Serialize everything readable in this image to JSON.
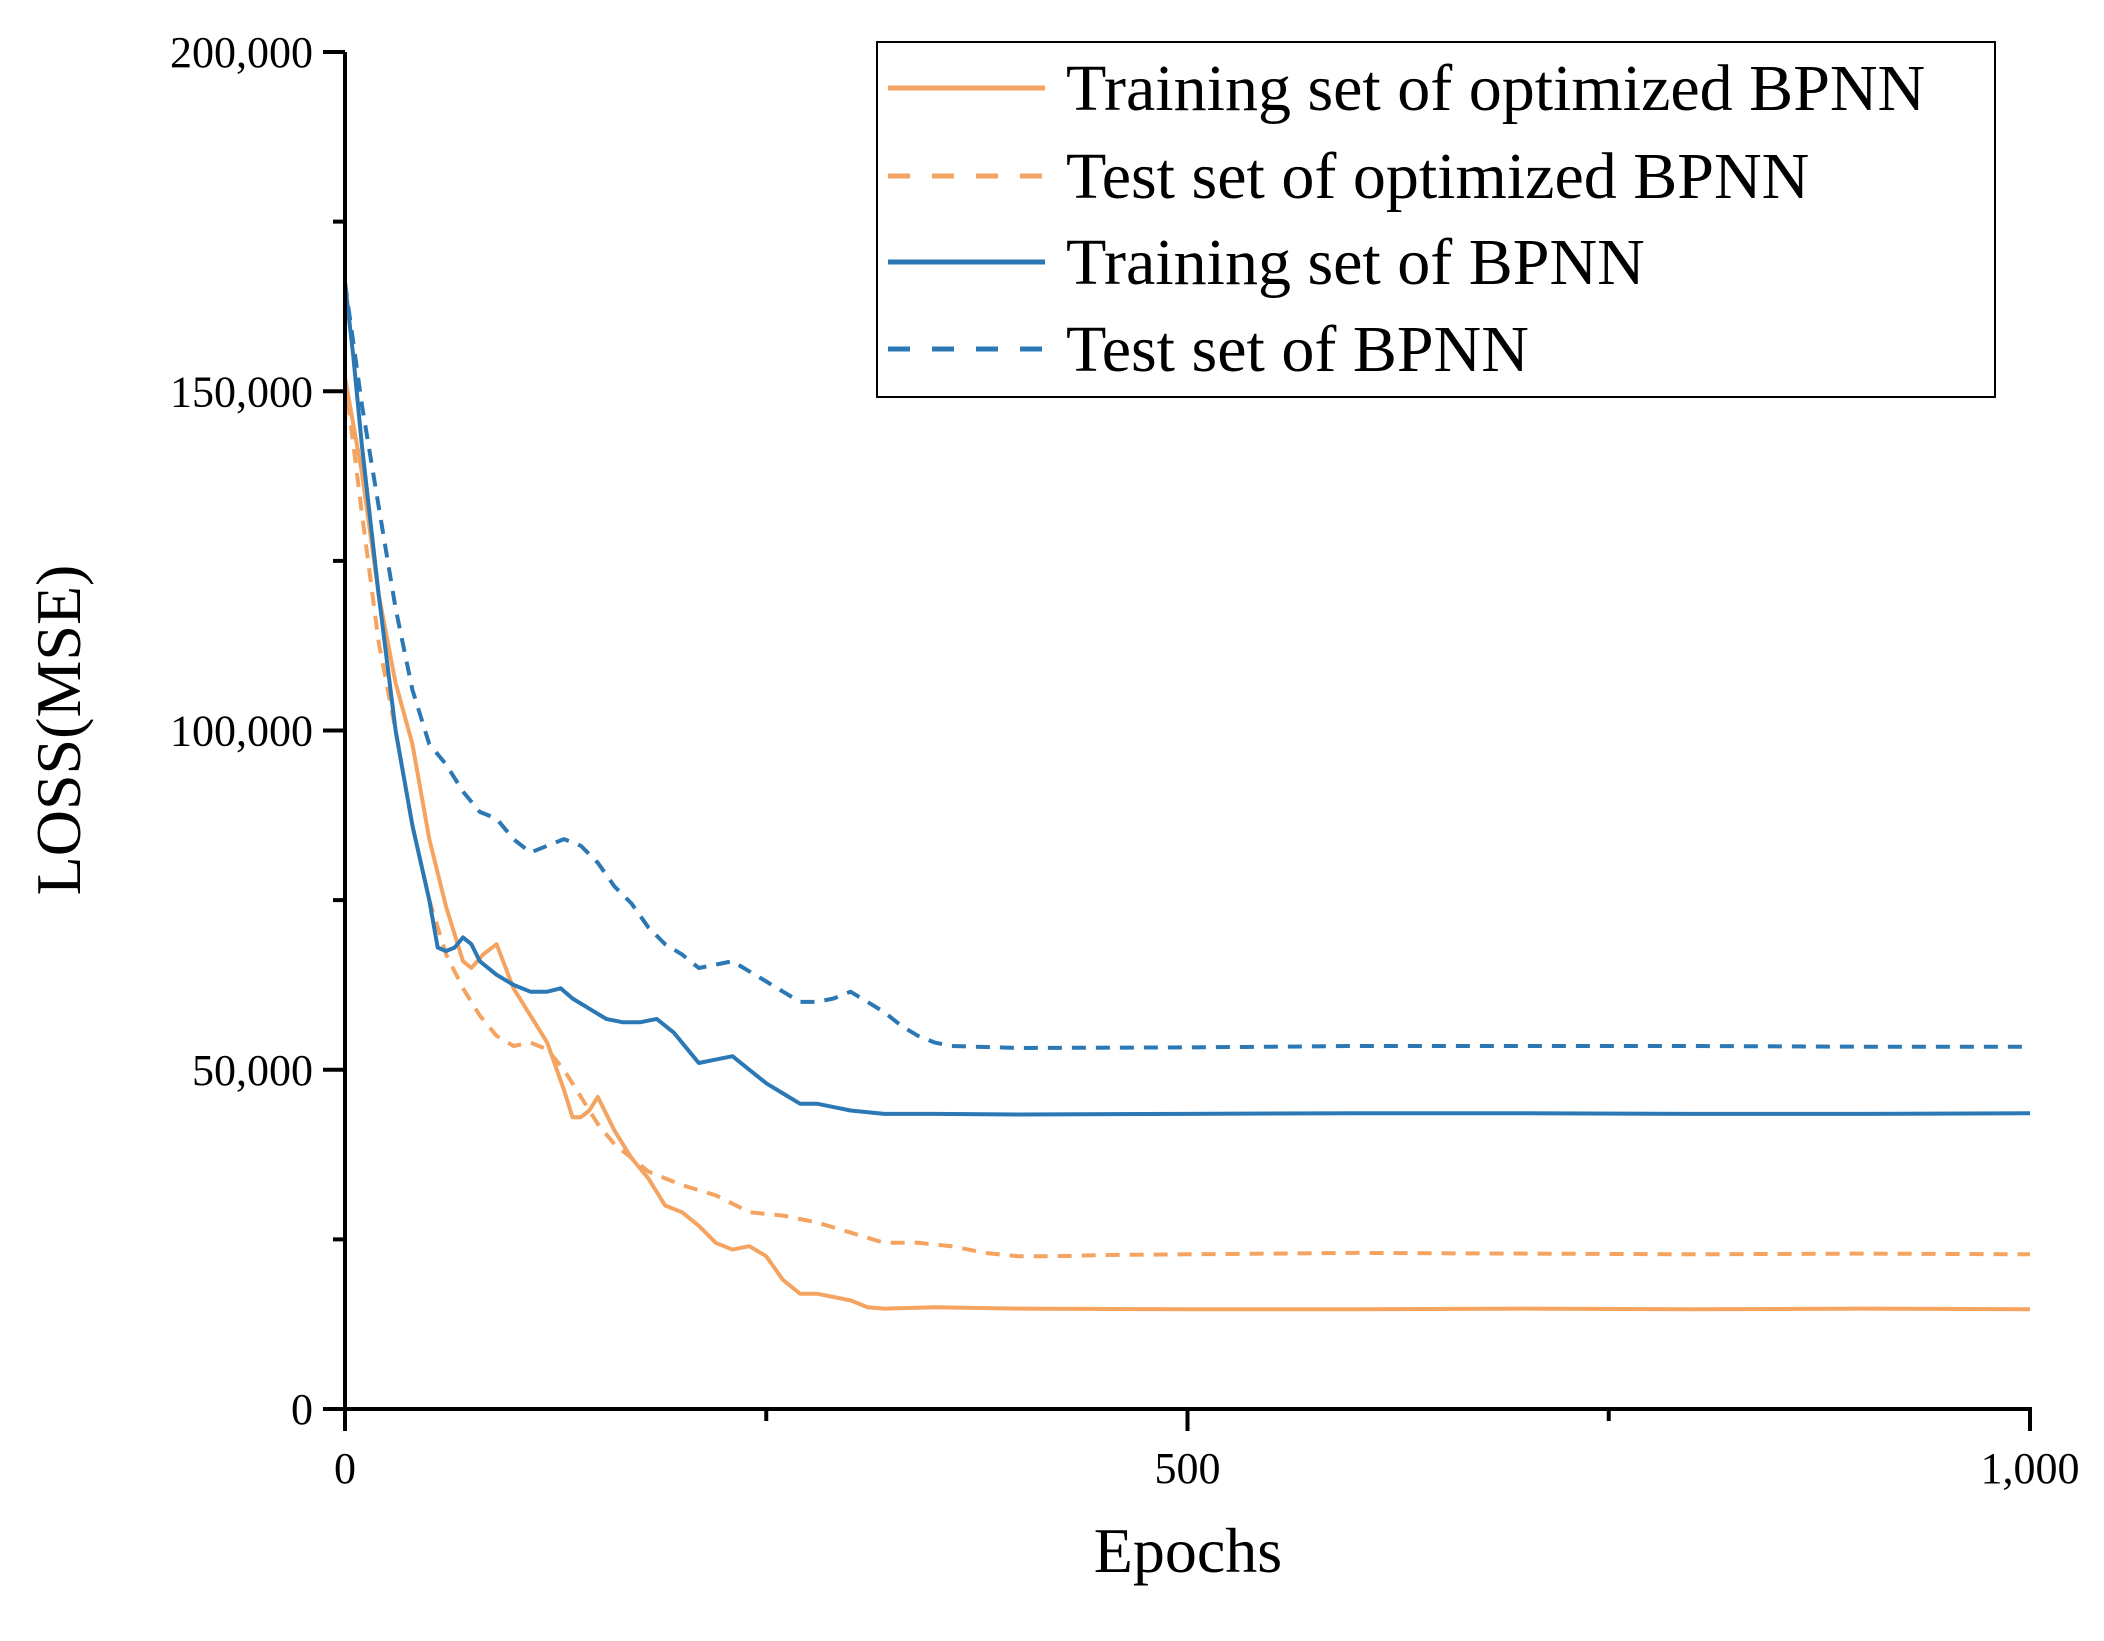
{
  "chart_data": {
    "type": "line",
    "title": "",
    "xlabel": "Epochs",
    "ylabel": "LOSS(MSE)",
    "xlim": [
      0,
      1000
    ],
    "ylim": [
      0,
      200000
    ],
    "x_ticks": [
      0,
      500,
      1000
    ],
    "x_tick_labels": [
      "0",
      "500",
      "1,000"
    ],
    "x_minor_ticks": [
      250,
      750
    ],
    "y_ticks": [
      0,
      50000,
      100000,
      150000,
      200000
    ],
    "y_tick_labels": [
      "0",
      "50,000",
      "100,000",
      "150,000",
      "200,000"
    ],
    "y_minor_ticks": [
      25000,
      75000,
      125000,
      175000
    ],
    "grid": false,
    "legend_position": "top-right",
    "series": [
      {
        "name": "Training set of optimized BPNN",
        "color": "#f4a460",
        "dash": "solid",
        "points": [
          [
            0,
            152000
          ],
          [
            10,
            138000
          ],
          [
            20,
            120000
          ],
          [
            30,
            107000
          ],
          [
            40,
            98000
          ],
          [
            50,
            84000
          ],
          [
            60,
            74000
          ],
          [
            70,
            66000
          ],
          [
            75,
            65000
          ],
          [
            82,
            67000
          ],
          [
            90,
            68500
          ],
          [
            100,
            62000
          ],
          [
            110,
            58000
          ],
          [
            120,
            54000
          ],
          [
            130,
            47000
          ],
          [
            135,
            43000
          ],
          [
            140,
            43000
          ],
          [
            145,
            44000
          ],
          [
            150,
            46000
          ],
          [
            160,
            41000
          ],
          [
            170,
            37000
          ],
          [
            180,
            34000
          ],
          [
            190,
            30000
          ],
          [
            200,
            29000
          ],
          [
            210,
            27000
          ],
          [
            220,
            24500
          ],
          [
            230,
            23500
          ],
          [
            240,
            24000
          ],
          [
            250,
            22500
          ],
          [
            260,
            19000
          ],
          [
            270,
            17000
          ],
          [
            280,
            17000
          ],
          [
            290,
            16500
          ],
          [
            300,
            16000
          ],
          [
            310,
            15000
          ],
          [
            320,
            14800
          ],
          [
            350,
            15000
          ],
          [
            400,
            14800
          ],
          [
            500,
            14700
          ],
          [
            600,
            14700
          ],
          [
            700,
            14800
          ],
          [
            800,
            14700
          ],
          [
            900,
            14800
          ],
          [
            1000,
            14700
          ]
        ]
      },
      {
        "name": "Test set of optimized BPNN",
        "color": "#f4a460",
        "dash": "dashed",
        "points": [
          [
            0,
            152000
          ],
          [
            10,
            132000
          ],
          [
            20,
            113000
          ],
          [
            30,
            100000
          ],
          [
            40,
            86000
          ],
          [
            50,
            75000
          ],
          [
            60,
            67000
          ],
          [
            70,
            62000
          ],
          [
            80,
            58000
          ],
          [
            90,
            55000
          ],
          [
            100,
            53500
          ],
          [
            110,
            54000
          ],
          [
            120,
            53000
          ],
          [
            130,
            50000
          ],
          [
            140,
            46000
          ],
          [
            150,
            42000
          ],
          [
            160,
            39000
          ],
          [
            170,
            37000
          ],
          [
            180,
            35000
          ],
          [
            200,
            33000
          ],
          [
            220,
            31500
          ],
          [
            240,
            29000
          ],
          [
            260,
            28500
          ],
          [
            280,
            27500
          ],
          [
            300,
            26000
          ],
          [
            320,
            24500
          ],
          [
            340,
            24500
          ],
          [
            360,
            24000
          ],
          [
            380,
            23000
          ],
          [
            400,
            22500
          ],
          [
            420,
            22500
          ],
          [
            450,
            22700
          ],
          [
            500,
            22800
          ],
          [
            600,
            23000
          ],
          [
            700,
            22900
          ],
          [
            800,
            22800
          ],
          [
            900,
            22900
          ],
          [
            1000,
            22800
          ]
        ]
      },
      {
        "name": "Training set of BPNN",
        "color": "#2b78b4",
        "dash": "solid",
        "points": [
          [
            0,
            166000
          ],
          [
            5,
            155000
          ],
          [
            10,
            142000
          ],
          [
            20,
            120000
          ],
          [
            30,
            100000
          ],
          [
            40,
            86000
          ],
          [
            50,
            75000
          ],
          [
            55,
            68000
          ],
          [
            60,
            67500
          ],
          [
            65,
            68000
          ],
          [
            70,
            69500
          ],
          [
            75,
            68500
          ],
          [
            80,
            66000
          ],
          [
            90,
            64000
          ],
          [
            100,
            62500
          ],
          [
            110,
            61500
          ],
          [
            120,
            61500
          ],
          [
            128,
            62000
          ],
          [
            135,
            60500
          ],
          [
            145,
            59000
          ],
          [
            155,
            57500
          ],
          [
            165,
            57000
          ],
          [
            175,
            57000
          ],
          [
            185,
            57500
          ],
          [
            195,
            55500
          ],
          [
            205,
            52500
          ],
          [
            210,
            51000
          ],
          [
            220,
            51500
          ],
          [
            230,
            52000
          ],
          [
            240,
            50000
          ],
          [
            250,
            48000
          ],
          [
            260,
            46500
          ],
          [
            270,
            45000
          ],
          [
            280,
            45000
          ],
          [
            290,
            44500
          ],
          [
            300,
            44000
          ],
          [
            320,
            43500
          ],
          [
            350,
            43500
          ],
          [
            400,
            43400
          ],
          [
            500,
            43500
          ],
          [
            600,
            43600
          ],
          [
            700,
            43600
          ],
          [
            800,
            43500
          ],
          [
            900,
            43500
          ],
          [
            1000,
            43600
          ]
        ]
      },
      {
        "name": "Test set of BPNN",
        "color": "#2b78b4",
        "dash": "dashed",
        "points": [
          [
            0,
            166000
          ],
          [
            10,
            148000
          ],
          [
            20,
            133000
          ],
          [
            30,
            118000
          ],
          [
            40,
            106000
          ],
          [
            50,
            98000
          ],
          [
            60,
            95000
          ],
          [
            70,
            91000
          ],
          [
            80,
            88000
          ],
          [
            90,
            87000
          ],
          [
            100,
            84000
          ],
          [
            110,
            82000
          ],
          [
            120,
            83000
          ],
          [
            130,
            84000
          ],
          [
            140,
            83000
          ],
          [
            150,
            80500
          ],
          [
            160,
            77000
          ],
          [
            170,
            74500
          ],
          [
            180,
            71000
          ],
          [
            190,
            68500
          ],
          [
            200,
            67000
          ],
          [
            210,
            65000
          ],
          [
            220,
            65500
          ],
          [
            230,
            66000
          ],
          [
            240,
            64500
          ],
          [
            250,
            63000
          ],
          [
            260,
            61500
          ],
          [
            270,
            60000
          ],
          [
            280,
            60000
          ],
          [
            290,
            60500
          ],
          [
            300,
            61500
          ],
          [
            310,
            60000
          ],
          [
            320,
            58500
          ],
          [
            330,
            56500
          ],
          [
            340,
            55000
          ],
          [
            350,
            54000
          ],
          [
            360,
            53500
          ],
          [
            400,
            53200
          ],
          [
            500,
            53300
          ],
          [
            600,
            53500
          ],
          [
            700,
            53500
          ],
          [
            800,
            53500
          ],
          [
            900,
            53400
          ],
          [
            1000,
            53400
          ]
        ]
      }
    ]
  }
}
